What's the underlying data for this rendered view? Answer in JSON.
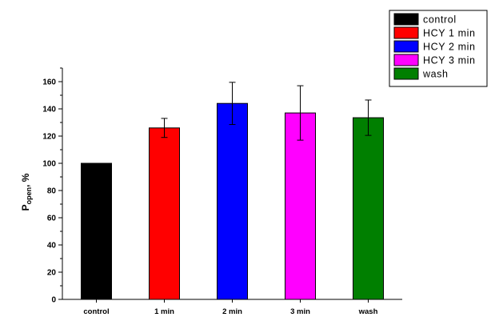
{
  "chart_data": {
    "type": "bar",
    "categories": [
      "control",
      "1 min",
      "2 min",
      "3 min",
      "wash"
    ],
    "values": [
      100,
      126,
      144,
      137,
      133.5
    ],
    "errors": [
      0,
      7,
      15.5,
      20,
      13
    ],
    "ylabel_main": "P",
    "ylabel_sub": "open",
    "ylabel_suffix": ", %",
    "ylim": [
      0,
      170
    ],
    "yticks": [
      0,
      20,
      40,
      60,
      80,
      100,
      120,
      140,
      160
    ],
    "legend": {
      "placement": "top-right",
      "entries": [
        "control",
        "HCY 1 min",
        "HCY 2 min",
        "HCY 3 min",
        "wash"
      ]
    },
    "colors": [
      "#000000",
      "#ff0000",
      "#0000ff",
      "#ff00ff",
      "#007f00"
    ],
    "grid": false
  }
}
